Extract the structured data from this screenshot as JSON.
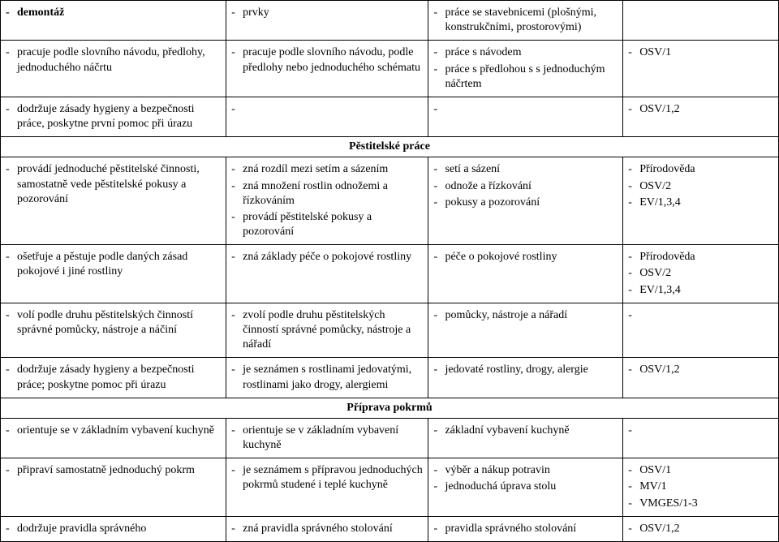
{
  "rows": [
    {
      "c1": [
        {
          "text": "demontáž",
          "bold": true
        }
      ],
      "c2": [
        {
          "text": "prvky"
        }
      ],
      "c3": [
        {
          "text": "práce se stavebnicemi (plošnými, konstrukčními, prostorovými)"
        }
      ],
      "c4": []
    },
    {
      "c1": [
        {
          "text": "pracuje podle slovního návodu, předlohy, jednoduchého náčrtu"
        }
      ],
      "c2": [
        {
          "text": "pracuje podle slovního návodu, podle předlohy nebo jednoduchého schématu"
        }
      ],
      "c3": [
        {
          "text": "práce s návodem"
        },
        {
          "text": "práce s předlohou s s jednoduchým náčrtem"
        }
      ],
      "c4": [
        {
          "text": "OSV/1"
        }
      ]
    },
    {
      "c1": [
        {
          "text": "dodržuje zásady hygieny a bezpečnosti práce, poskytne první pomoc při úrazu"
        }
      ],
      "c2": [
        {
          "text": ""
        }
      ],
      "c3": [
        {
          "text": ""
        }
      ],
      "c4": [
        {
          "text": "OSV/1,2"
        }
      ]
    },
    {
      "section": "Pěstitelské práce"
    },
    {
      "c1": [
        {
          "text": "provádí jednoduché pěstitelské činnosti, samostatně vede pěstitelské pokusy a pozorování"
        }
      ],
      "c2": [
        {
          "text": "zná rozdíl mezi setím a sázením"
        },
        {
          "text": "zná množení rostlin odnožemi a řízkováním"
        },
        {
          "text": "provádí pěstitelské pokusy a pozorování"
        }
      ],
      "c3": [
        {
          "text": "setí a sázení"
        },
        {
          "text": "odnože a řízkování"
        },
        {
          "text": "pokusy a pozorování"
        }
      ],
      "c4": [
        {
          "text": "Přírodověda"
        },
        {
          "text": "OSV/2"
        },
        {
          "text": "EV/1,3,4"
        }
      ]
    },
    {
      "c1": [
        {
          "text": "ošetřuje a pěstuje podle daných zásad pokojové i jiné rostliny"
        }
      ],
      "c2": [
        {
          "text": "zná základy péče o pokojové rostliny"
        }
      ],
      "c3": [
        {
          "text": "péče o pokojové rostliny"
        }
      ],
      "c4": [
        {
          "text": "Přírodověda"
        },
        {
          "text": "OSV/2"
        },
        {
          "text": "EV/1,3,4"
        }
      ]
    },
    {
      "c1": [
        {
          "text": "volí podle druhu pěstitelských činností správné pomůcky, nástroje a náčiní"
        }
      ],
      "c2": [
        {
          "text": "zvolí podle druhu pěstitelských činností správné pomůcky, nástroje a nářadí"
        }
      ],
      "c3": [
        {
          "text": "pomůcky, nástroje a nářadí"
        }
      ],
      "c4": [
        {
          "text": ""
        }
      ]
    },
    {
      "c1": [
        {
          "text": "dodržuje zásady hygieny a bezpečnosti práce; poskytne pomoc při úrazu"
        }
      ],
      "c2": [
        {
          "text": "je seznámen s rostlinami jedovatými, rostlinami jako drogy, alergiemi"
        }
      ],
      "c3": [
        {
          "text": "jedovaté rostliny, drogy, alergie"
        }
      ],
      "c4": [
        {
          "text": "OSV/1,2"
        }
      ]
    },
    {
      "section": "Příprava pokrmů"
    },
    {
      "c1": [
        {
          "text": "orientuje se v základním vybavení kuchyně"
        }
      ],
      "c2": [
        {
          "text": "orientuje se v základním vybavení kuchyně"
        }
      ],
      "c3": [
        {
          "text": "základní vybavení kuchyně"
        }
      ],
      "c4": [
        {
          "text": ""
        }
      ]
    },
    {
      "c1": [
        {
          "text": "připraví samostatně jednoduchý pokrm"
        }
      ],
      "c2": [
        {
          "text": "je seznámem s přípravou jednoduchých pokrmů studené i teplé kuchyně"
        }
      ],
      "c3": [
        {
          "text": "výběr a nákup potravin"
        },
        {
          "text": "jednoduchá úprava stolu"
        }
      ],
      "c4": [
        {
          "text": "OSV/1"
        },
        {
          "text": "MV/1"
        },
        {
          "text": "VMGES/1-3"
        }
      ]
    },
    {
      "c1": [
        {
          "text": "dodržuje pravidla správného"
        }
      ],
      "c2": [
        {
          "text": "zná pravidla správného stolování"
        }
      ],
      "c3": [
        {
          "text": "pravidla správného stolování"
        }
      ],
      "c4": [
        {
          "text": "OSV/1,2"
        }
      ]
    }
  ],
  "colors": {
    "text": "#000000",
    "border": "#000000",
    "background": "#ffffff"
  }
}
